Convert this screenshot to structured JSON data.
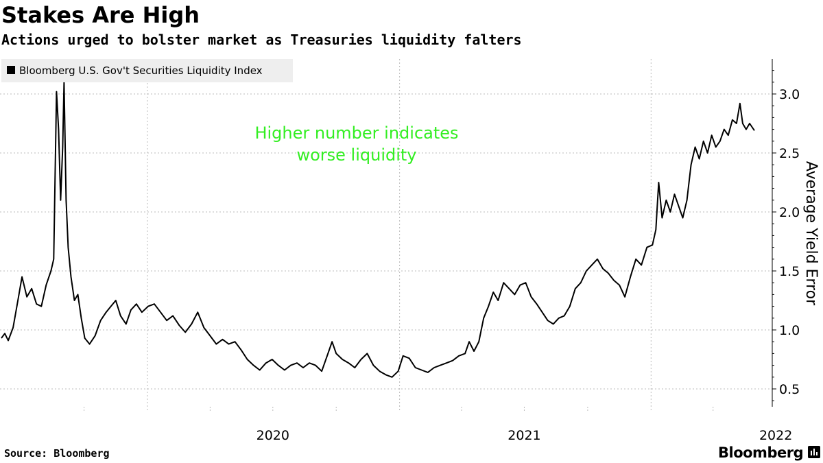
{
  "title": "Stakes Are High",
  "subtitle": "Actions urged to bolster market as Treasuries liquidity falters",
  "footer": {
    "source": "Source: Bloomberg",
    "brand": "Bloomberg"
  },
  "icons": {
    "legend_swatch": "square",
    "brand_mark": "bloomberg-bars-icon"
  },
  "colors": {
    "line": "#000000",
    "annotation": "#33ee22",
    "legend_bg": "#eeeeee",
    "grid": "#bbbbbb"
  },
  "chart_data": {
    "type": "line",
    "legend_position": "top-left",
    "grid": true,
    "y_axis_side": "right",
    "ylabel": "Average Yield Error",
    "ylim": [
      0.34,
      3.3
    ],
    "yticks": [
      0.5,
      1.0,
      1.5,
      2.0,
      2.5,
      3.0
    ],
    "ytick_labels": [
      "0.5",
      "1.0",
      "1.5",
      "2.0",
      "2.5",
      "3.0"
    ],
    "xlim": [
      "2019-06-03",
      "2022-05-31"
    ],
    "xtick_labels": [
      {
        "label": "2020",
        "date": "2020-01-01"
      },
      {
        "label": "2021",
        "date": "2021-01-01"
      },
      {
        "label": "2022",
        "date": "2022-01-01"
      }
    ],
    "minor_ticks": [
      "2019-10-01",
      "2020-04-01",
      "2020-07-01",
      "2020-10-01",
      "2021-04-01",
      "2021-07-01",
      "2021-10-01",
      "2022-04-01"
    ],
    "annotation": {
      "lines": [
        "Higher number indicates",
        "worse liquidity"
      ]
    },
    "series": [
      {
        "name": "Bloomberg U.S. Gov't Securities Liquidity Index",
        "points": [
          [
            "2019-06-03",
            0.93
          ],
          [
            "2019-06-08",
            0.97
          ],
          [
            "2019-06-13",
            0.91
          ],
          [
            "2019-06-20",
            1.02
          ],
          [
            "2019-06-27",
            1.25
          ],
          [
            "2019-07-03",
            1.45
          ],
          [
            "2019-07-10",
            1.28
          ],
          [
            "2019-07-17",
            1.35
          ],
          [
            "2019-07-24",
            1.22
          ],
          [
            "2019-07-31",
            1.2
          ],
          [
            "2019-08-07",
            1.38
          ],
          [
            "2019-08-14",
            1.5
          ],
          [
            "2019-08-18",
            1.6
          ],
          [
            "2019-08-22",
            3.02
          ],
          [
            "2019-08-25",
            2.7
          ],
          [
            "2019-08-28",
            2.1
          ],
          [
            "2019-08-31",
            2.55
          ],
          [
            "2019-09-02",
            3.1
          ],
          [
            "2019-09-05",
            2.1
          ],
          [
            "2019-09-08",
            1.7
          ],
          [
            "2019-09-12",
            1.45
          ],
          [
            "2019-09-17",
            1.25
          ],
          [
            "2019-09-22",
            1.3
          ],
          [
            "2019-09-27",
            1.1
          ],
          [
            "2019-10-02",
            0.93
          ],
          [
            "2019-10-09",
            0.88
          ],
          [
            "2019-10-17",
            0.95
          ],
          [
            "2019-10-25",
            1.08
          ],
          [
            "2019-11-02",
            1.15
          ],
          [
            "2019-11-09",
            1.2
          ],
          [
            "2019-11-16",
            1.25
          ],
          [
            "2019-11-23",
            1.12
          ],
          [
            "2019-12-01",
            1.05
          ],
          [
            "2019-12-08",
            1.17
          ],
          [
            "2019-12-16",
            1.22
          ],
          [
            "2019-12-24",
            1.15
          ],
          [
            "2020-01-02",
            1.2
          ],
          [
            "2020-01-11",
            1.22
          ],
          [
            "2020-01-20",
            1.15
          ],
          [
            "2020-01-29",
            1.08
          ],
          [
            "2020-02-07",
            1.12
          ],
          [
            "2020-02-16",
            1.04
          ],
          [
            "2020-02-25",
            0.98
          ],
          [
            "2020-03-05",
            1.05
          ],
          [
            "2020-03-14",
            1.15
          ],
          [
            "2020-03-23",
            1.02
          ],
          [
            "2020-04-01",
            0.95
          ],
          [
            "2020-04-10",
            0.88
          ],
          [
            "2020-04-19",
            0.92
          ],
          [
            "2020-04-28",
            0.88
          ],
          [
            "2020-05-07",
            0.9
          ],
          [
            "2020-05-16",
            0.83
          ],
          [
            "2020-05-25",
            0.75
          ],
          [
            "2020-06-03",
            0.7
          ],
          [
            "2020-06-12",
            0.66
          ],
          [
            "2020-06-21",
            0.72
          ],
          [
            "2020-06-30",
            0.75
          ],
          [
            "2020-07-09",
            0.7
          ],
          [
            "2020-07-18",
            0.66
          ],
          [
            "2020-07-27",
            0.7
          ],
          [
            "2020-08-05",
            0.72
          ],
          [
            "2020-08-14",
            0.68
          ],
          [
            "2020-08-23",
            0.72
          ],
          [
            "2020-09-01",
            0.7
          ],
          [
            "2020-09-10",
            0.65
          ],
          [
            "2020-09-19",
            0.8
          ],
          [
            "2020-09-25",
            0.9
          ],
          [
            "2020-10-01",
            0.8
          ],
          [
            "2020-10-10",
            0.75
          ],
          [
            "2020-10-19",
            0.72
          ],
          [
            "2020-10-28",
            0.68
          ],
          [
            "2020-11-06",
            0.75
          ],
          [
            "2020-11-15",
            0.8
          ],
          [
            "2020-11-24",
            0.7
          ],
          [
            "2020-12-03",
            0.65
          ],
          [
            "2020-12-12",
            0.62
          ],
          [
            "2020-12-21",
            0.6
          ],
          [
            "2020-12-30",
            0.65
          ],
          [
            "2021-01-06",
            0.78
          ],
          [
            "2021-01-15",
            0.76
          ],
          [
            "2021-01-24",
            0.68
          ],
          [
            "2021-02-02",
            0.66
          ],
          [
            "2021-02-11",
            0.64
          ],
          [
            "2021-02-20",
            0.68
          ],
          [
            "2021-03-01",
            0.7
          ],
          [
            "2021-03-10",
            0.72
          ],
          [
            "2021-03-19",
            0.74
          ],
          [
            "2021-03-28",
            0.78
          ],
          [
            "2021-04-06",
            0.8
          ],
          [
            "2021-04-12",
            0.9
          ],
          [
            "2021-04-19",
            0.82
          ],
          [
            "2021-04-26",
            0.9
          ],
          [
            "2021-05-03",
            1.1
          ],
          [
            "2021-05-10",
            1.2
          ],
          [
            "2021-05-17",
            1.32
          ],
          [
            "2021-05-24",
            1.25
          ],
          [
            "2021-06-01",
            1.4
          ],
          [
            "2021-06-09",
            1.35
          ],
          [
            "2021-06-17",
            1.3
          ],
          [
            "2021-06-25",
            1.38
          ],
          [
            "2021-07-03",
            1.4
          ],
          [
            "2021-07-11",
            1.28
          ],
          [
            "2021-07-19",
            1.22
          ],
          [
            "2021-07-27",
            1.15
          ],
          [
            "2021-08-04",
            1.08
          ],
          [
            "2021-08-12",
            1.05
          ],
          [
            "2021-08-20",
            1.1
          ],
          [
            "2021-08-28",
            1.12
          ],
          [
            "2021-09-05",
            1.2
          ],
          [
            "2021-09-13",
            1.35
          ],
          [
            "2021-09-21",
            1.4
          ],
          [
            "2021-09-29",
            1.5
          ],
          [
            "2021-10-07",
            1.55
          ],
          [
            "2021-10-15",
            1.6
          ],
          [
            "2021-10-23",
            1.52
          ],
          [
            "2021-10-31",
            1.48
          ],
          [
            "2021-11-08",
            1.42
          ],
          [
            "2021-11-16",
            1.38
          ],
          [
            "2021-11-24",
            1.28
          ],
          [
            "2021-12-02",
            1.45
          ],
          [
            "2021-12-10",
            1.6
          ],
          [
            "2021-12-18",
            1.55
          ],
          [
            "2021-12-26",
            1.7
          ],
          [
            "2022-01-03",
            1.72
          ],
          [
            "2022-01-08",
            1.85
          ],
          [
            "2022-01-12",
            2.25
          ],
          [
            "2022-01-17",
            1.95
          ],
          [
            "2022-01-23",
            2.1
          ],
          [
            "2022-01-29",
            2.0
          ],
          [
            "2022-02-04",
            2.15
          ],
          [
            "2022-02-10",
            2.05
          ],
          [
            "2022-02-16",
            1.95
          ],
          [
            "2022-02-22",
            2.1
          ],
          [
            "2022-02-28",
            2.4
          ],
          [
            "2022-03-06",
            2.55
          ],
          [
            "2022-03-12",
            2.45
          ],
          [
            "2022-03-18",
            2.6
          ],
          [
            "2022-03-24",
            2.5
          ],
          [
            "2022-03-30",
            2.65
          ],
          [
            "2022-04-05",
            2.55
          ],
          [
            "2022-04-11",
            2.6
          ],
          [
            "2022-04-17",
            2.7
          ],
          [
            "2022-04-23",
            2.65
          ],
          [
            "2022-04-29",
            2.78
          ],
          [
            "2022-05-05",
            2.75
          ],
          [
            "2022-05-10",
            2.92
          ],
          [
            "2022-05-14",
            2.75
          ],
          [
            "2022-05-19",
            2.7
          ],
          [
            "2022-05-24",
            2.75
          ],
          [
            "2022-05-31",
            2.69
          ]
        ]
      }
    ]
  }
}
